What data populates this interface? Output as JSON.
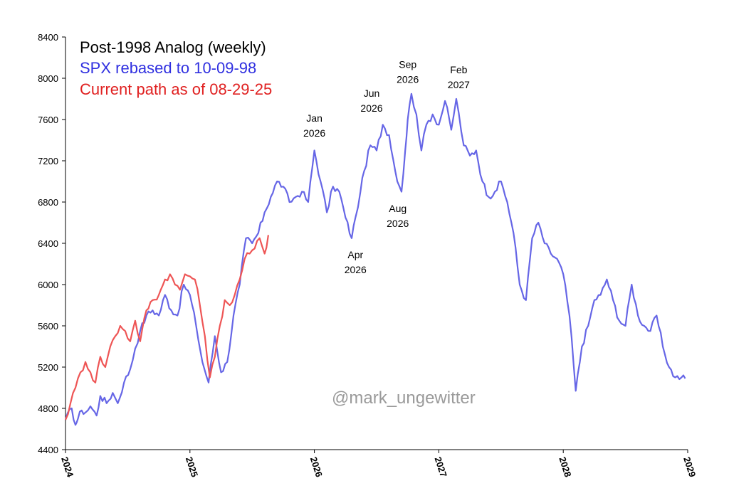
{
  "chart_data": {
    "type": "line",
    "title": "Post-1998 Analog (weekly)",
    "xlabel": "",
    "ylabel": "",
    "ylim": [
      4400,
      8400
    ],
    "xlim": [
      2024.0,
      2029.0
    ],
    "y_ticks": [
      4400,
      4800,
      5200,
      5600,
      6000,
      6400,
      6800,
      7200,
      7600,
      8000,
      8400
    ],
    "x_ticks": [
      {
        "value": 2024,
        "label": "2024"
      },
      {
        "value": 2025,
        "label": "2025"
      },
      {
        "value": 2026,
        "label": "2026"
      },
      {
        "value": 2027,
        "label": "2027"
      },
      {
        "value": 2028,
        "label": "2028"
      },
      {
        "value": 2029,
        "label": "2029"
      }
    ],
    "grid": false,
    "legend": [
      {
        "label": "Post-1998 Analog (weekly)",
        "color": "#000000"
      },
      {
        "label": "SPX rebased to 10-09-98",
        "color": "#3030e0"
      },
      {
        "label": "Current path as of 08-29-25",
        "color": "#e02020"
      }
    ],
    "series": [
      {
        "name": "SPX rebased to 10-09-98",
        "color": "#6666e6",
        "x": [
          2024.0,
          2024.05,
          2024.08,
          2024.1,
          2024.13,
          2024.16,
          2024.2,
          2024.25,
          2024.28,
          2024.33,
          2024.38,
          2024.42,
          2024.47,
          2024.52,
          2024.56,
          2024.6,
          2024.65,
          2024.7,
          2024.75,
          2024.8,
          2024.85,
          2024.9,
          2024.95,
          2025.0,
          2025.05,
          2025.1,
          2025.15,
          2025.2,
          2025.25,
          2025.3,
          2025.35,
          2025.4,
          2025.45,
          2025.5,
          2025.55,
          2025.6,
          2025.65,
          2025.7,
          2025.75,
          2025.8,
          2025.85,
          2025.9,
          2025.95,
          2026.0,
          2026.05,
          2026.1,
          2026.15,
          2026.2,
          2026.25,
          2026.3,
          2026.33,
          2026.37,
          2026.4,
          2026.45,
          2026.5,
          2026.55,
          2026.6,
          2026.65,
          2026.7,
          2026.73,
          2026.75,
          2026.78,
          2026.82,
          2026.86,
          2026.9,
          2026.95,
          2027.0,
          2027.05,
          2027.1,
          2027.14,
          2027.2,
          2027.25,
          2027.3,
          2027.35,
          2027.4,
          2027.45,
          2027.5,
          2027.55,
          2027.6,
          2027.65,
          2027.7,
          2027.75,
          2027.8,
          2027.85,
          2027.9,
          2027.95,
          2028.0,
          2028.05,
          2028.1,
          2028.15,
          2028.2,
          2028.25,
          2028.3,
          2028.35,
          2028.4,
          2028.45,
          2028.5,
          2028.55,
          2028.6,
          2028.65,
          2028.7,
          2028.75,
          2028.8,
          2028.85,
          2028.9,
          2028.95,
          2028.98
        ],
        "values": [
          4690,
          4800,
          4640,
          4700,
          4780,
          4760,
          4820,
          4730,
          4920,
          4850,
          4950,
          4850,
          5050,
          5180,
          5380,
          5550,
          5700,
          5750,
          5700,
          5900,
          5750,
          5700,
          6000,
          5900,
          5600,
          5250,
          5050,
          5500,
          5150,
          5250,
          5700,
          6000,
          6450,
          6400,
          6500,
          6700,
          6850,
          7000,
          6950,
          6800,
          6850,
          6900,
          6800,
          7300,
          7000,
          6700,
          6950,
          6900,
          6650,
          6450,
          6650,
          6900,
          7100,
          7350,
          7300,
          7550,
          7450,
          7100,
          6900,
          7300,
          7600,
          7850,
          7650,
          7300,
          7550,
          7650,
          7550,
          7780,
          7500,
          7800,
          7350,
          7250,
          7300,
          7000,
          6850,
          6900,
          7000,
          6800,
          6500,
          6000,
          5850,
          6450,
          6600,
          6400,
          6300,
          6250,
          6100,
          5700,
          4970,
          5400,
          5600,
          5850,
          5900,
          6050,
          5850,
          5650,
          5600,
          6000,
          5700,
          5600,
          5550,
          5700,
          5400,
          5200,
          5100,
          5100,
          5090
        ]
      },
      {
        "name": "Current path as of 08-29-25",
        "color": "#ee5555",
        "x": [
          2024.0,
          2024.04,
          2024.08,
          2024.12,
          2024.16,
          2024.2,
          2024.24,
          2024.28,
          2024.32,
          2024.36,
          2024.4,
          2024.44,
          2024.48,
          2024.52,
          2024.56,
          2024.6,
          2024.65,
          2024.7,
          2024.75,
          2024.8,
          2024.84,
          2024.88,
          2024.92,
          2024.96,
          2025.0,
          2025.04,
          2025.08,
          2025.12,
          2025.16,
          2025.2,
          2025.24,
          2025.28,
          2025.32,
          2025.36,
          2025.4,
          2025.44,
          2025.48,
          2025.52,
          2025.56,
          2025.6,
          2025.63
        ],
        "values": [
          4690,
          4850,
          5000,
          5150,
          5250,
          5150,
          5050,
          5300,
          5200,
          5400,
          5500,
          5600,
          5550,
          5450,
          5650,
          5450,
          5750,
          5850,
          5900,
          6050,
          6100,
          6000,
          5950,
          6100,
          6080,
          6050,
          5800,
          5500,
          5100,
          5300,
          5600,
          5850,
          5800,
          5900,
          6050,
          6250,
          6300,
          6350,
          6450,
          6300,
          6480
        ]
      }
    ],
    "annotations": [
      {
        "lines": [
          "Jan",
          "2026"
        ],
        "x": 2026.0,
        "y": 7380,
        "position": "above"
      },
      {
        "lines": [
          "Apr",
          "2026"
        ],
        "x": 2026.33,
        "y": 6420,
        "position": "below"
      },
      {
        "lines": [
          "Jun",
          "2026"
        ],
        "x": 2026.46,
        "y": 7620,
        "position": "above"
      },
      {
        "lines": [
          "Aug",
          "2026"
        ],
        "x": 2026.67,
        "y": 6870,
        "position": "below"
      },
      {
        "lines": [
          "Sep",
          "2026"
        ],
        "x": 2026.75,
        "y": 7900,
        "position": "above"
      },
      {
        "lines": [
          "Feb",
          "2027"
        ],
        "x": 2027.16,
        "y": 7850,
        "position": "above"
      }
    ],
    "watermark": "@mark_ungewitter"
  }
}
